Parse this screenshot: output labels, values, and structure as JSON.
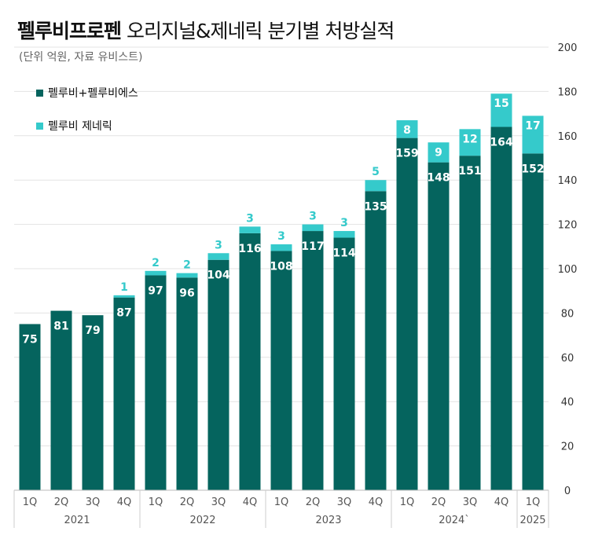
{
  "header": {
    "title_bold": "펠루비프로펜",
    "title_rest": " 오리지널&제네릭 분기별 처방실적",
    "subtitle": "(단위 억원, 자료 유비스트)"
  },
  "colors": {
    "original": "#05645e",
    "generic": "#35cacb",
    "generic_label": "#35cacb",
    "grid": "#e3e3e3"
  },
  "chart_data": {
    "type": "bar",
    "stacked": true,
    "title": "펠루비프로펜 오리지널&제네릭 분기별 처방실적",
    "subtitle": "(단위 억원, 자료 유비스트)",
    "categories": [
      "1Q",
      "2Q",
      "3Q",
      "4Q",
      "1Q",
      "2Q",
      "3Q",
      "4Q",
      "1Q",
      "2Q",
      "3Q",
      "4Q",
      "1Q",
      "2Q",
      "3Q",
      "4Q",
      "1Q"
    ],
    "groups": [
      {
        "label": "2021",
        "count": 4
      },
      {
        "label": "2022",
        "count": 4
      },
      {
        "label": "2023",
        "count": 4
      },
      {
        "label": "2024`",
        "count": 4
      },
      {
        "label": "2025",
        "count": 1
      }
    ],
    "series": [
      {
        "name": "펠루비+펠루비에스",
        "values": [
          75,
          81,
          79,
          87,
          97,
          96,
          104,
          116,
          108,
          117,
          114,
          135,
          159,
          148,
          151,
          164,
          152
        ]
      },
      {
        "name": "펠루비 제네릭",
        "values": [
          0,
          0,
          0,
          1,
          2,
          2,
          3,
          3,
          3,
          3,
          3,
          5,
          8,
          9,
          12,
          15,
          17
        ]
      }
    ],
    "yticks": [
      0,
      20,
      40,
      60,
      80,
      100,
      120,
      140,
      160,
      180,
      200
    ],
    "ylim": [
      0,
      200
    ],
    "grid": true,
    "legend_position": "top-left",
    "y_axis_side": "right"
  }
}
